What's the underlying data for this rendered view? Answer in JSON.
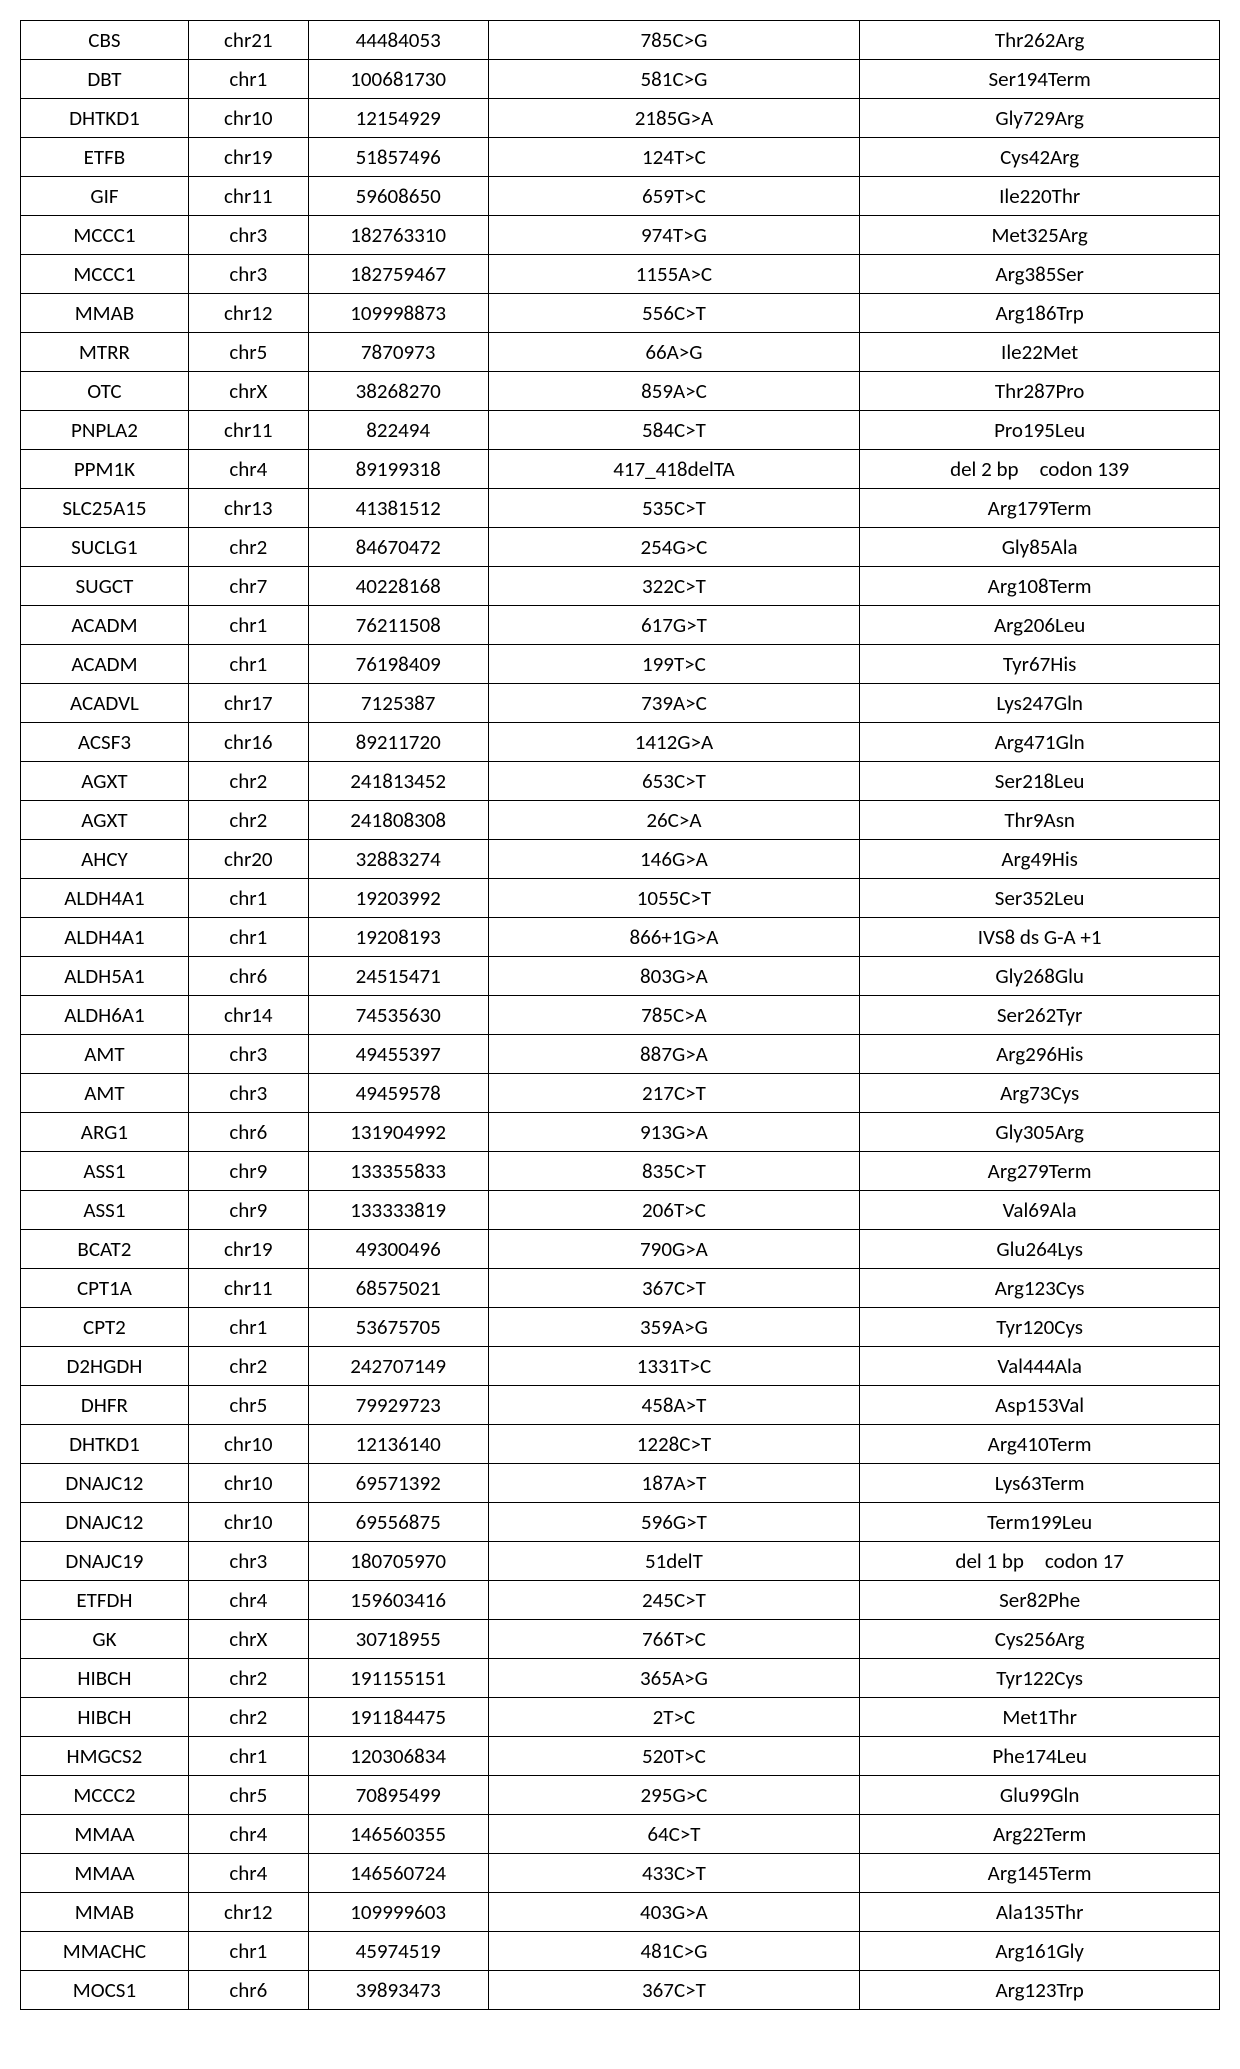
{
  "table": {
    "background_color": "#ffffff",
    "border_color": "#000000",
    "text_color": "#000000",
    "font_size_pt": 16,
    "columns": [
      "gene",
      "chromosome",
      "position",
      "nucleotide_change",
      "protein_change"
    ],
    "column_widths_pct": [
      14,
      10,
      15,
      31,
      30
    ],
    "rows": [
      [
        "CBS",
        "chr21",
        "44484053",
        "785C>G",
        "Thr262Arg"
      ],
      [
        "DBT",
        "chr1",
        "100681730",
        "581C>G",
        "Ser194Term"
      ],
      [
        "DHTKD1",
        "chr10",
        "12154929",
        "2185G>A",
        "Gly729Arg"
      ],
      [
        "ETFB",
        "chr19",
        "51857496",
        "124T>C",
        "Cys42Arg"
      ],
      [
        "GIF",
        "chr11",
        "59608650",
        "659T>C",
        "Ile220Thr"
      ],
      [
        "MCCC1",
        "chr3",
        "182763310",
        "974T>G",
        "Met325Arg"
      ],
      [
        "MCCC1",
        "chr3",
        "182759467",
        "1155A>C",
        "Arg385Ser"
      ],
      [
        "MMAB",
        "chr12",
        "109998873",
        "556C>T",
        "Arg186Trp"
      ],
      [
        "MTRR",
        "chr5",
        "7870973",
        "66A>G",
        "Ile22Met"
      ],
      [
        "OTC",
        "chrX",
        "38268270",
        "859A>C",
        "Thr287Pro"
      ],
      [
        "PNPLA2",
        "chr11",
        "822494",
        "584C>T",
        "Pro195Leu"
      ],
      [
        "PPM1K",
        "chr4",
        "89199318",
        "417_418delTA",
        "del 2 bp codon 139"
      ],
      [
        "SLC25A15",
        "chr13",
        "41381512",
        "535C>T",
        "Arg179Term"
      ],
      [
        "SUCLG1",
        "chr2",
        "84670472",
        "254G>C",
        "Gly85Ala"
      ],
      [
        "SUGCT",
        "chr7",
        "40228168",
        "322C>T",
        "Arg108Term"
      ],
      [
        "ACADM",
        "chr1",
        "76211508",
        "617G>T",
        "Arg206Leu"
      ],
      [
        "ACADM",
        "chr1",
        "76198409",
        "199T>C",
        "Tyr67His"
      ],
      [
        "ACADVL",
        "chr17",
        "7125387",
        "739A>C",
        "Lys247Gln"
      ],
      [
        "ACSF3",
        "chr16",
        "89211720",
        "1412G>A",
        "Arg471Gln"
      ],
      [
        "AGXT",
        "chr2",
        "241813452",
        "653C>T",
        "Ser218Leu"
      ],
      [
        "AGXT",
        "chr2",
        "241808308",
        "26C>A",
        "Thr9Asn"
      ],
      [
        "AHCY",
        "chr20",
        "32883274",
        "146G>A",
        "Arg49His"
      ],
      [
        "ALDH4A1",
        "chr1",
        "19203992",
        "1055C>T",
        "Ser352Leu"
      ],
      [
        "ALDH4A1",
        "chr1",
        "19208193",
        "866+1G>A",
        "IVS8 ds G-A +1"
      ],
      [
        "ALDH5A1",
        "chr6",
        "24515471",
        "803G>A",
        "Gly268Glu"
      ],
      [
        "ALDH6A1",
        "chr14",
        "74535630",
        "785C>A",
        "Ser262Tyr"
      ],
      [
        "AMT",
        "chr3",
        "49455397",
        "887G>A",
        "Arg296His"
      ],
      [
        "AMT",
        "chr3",
        "49459578",
        "217C>T",
        "Arg73Cys"
      ],
      [
        "ARG1",
        "chr6",
        "131904992",
        "913G>A",
        "Gly305Arg"
      ],
      [
        "ASS1",
        "chr9",
        "133355833",
        "835C>T",
        "Arg279Term"
      ],
      [
        "ASS1",
        "chr9",
        "133333819",
        "206T>C",
        "Val69Ala"
      ],
      [
        "BCAT2",
        "chr19",
        "49300496",
        "790G>A",
        "Glu264Lys"
      ],
      [
        "CPT1A",
        "chr11",
        "68575021",
        "367C>T",
        "Arg123Cys"
      ],
      [
        "CPT2",
        "chr1",
        "53675705",
        "359A>G",
        "Tyr120Cys"
      ],
      [
        "D2HGDH",
        "chr2",
        "242707149",
        "1331T>C",
        "Val444Ala"
      ],
      [
        "DHFR",
        "chr5",
        "79929723",
        "458A>T",
        "Asp153Val"
      ],
      [
        "DHTKD1",
        "chr10",
        "12136140",
        "1228C>T",
        "Arg410Term"
      ],
      [
        "DNAJC12",
        "chr10",
        "69571392",
        "187A>T",
        "Lys63Term"
      ],
      [
        "DNAJC12",
        "chr10",
        "69556875",
        "596G>T",
        "Term199Leu"
      ],
      [
        "DNAJC19",
        "chr3",
        "180705970",
        "51delT",
        "del 1 bp codon 17"
      ],
      [
        "ETFDH",
        "chr4",
        "159603416",
        "245C>T",
        "Ser82Phe"
      ],
      [
        "GK",
        "chrX",
        "30718955",
        "766T>C",
        "Cys256Arg"
      ],
      [
        "HIBCH",
        "chr2",
        "191155151",
        "365A>G",
        "Tyr122Cys"
      ],
      [
        "HIBCH",
        "chr2",
        "191184475",
        "2T>C",
        "Met1Thr"
      ],
      [
        "HMGCS2",
        "chr1",
        "120306834",
        "520T>C",
        "Phe174Leu"
      ],
      [
        "MCCC2",
        "chr5",
        "70895499",
        "295G>C",
        "Glu99Gln"
      ],
      [
        "MMAA",
        "chr4",
        "146560355",
        "64C>T",
        "Arg22Term"
      ],
      [
        "MMAA",
        "chr4",
        "146560724",
        "433C>T",
        "Arg145Term"
      ],
      [
        "MMAB",
        "chr12",
        "109999603",
        "403G>A",
        "Ala135Thr"
      ],
      [
        "MMACHC",
        "chr1",
        "45974519",
        "481C>G",
        "Arg161Gly"
      ],
      [
        "MOCS1",
        "chr6",
        "39893473",
        "367C>T",
        "Arg123Trp"
      ]
    ]
  }
}
